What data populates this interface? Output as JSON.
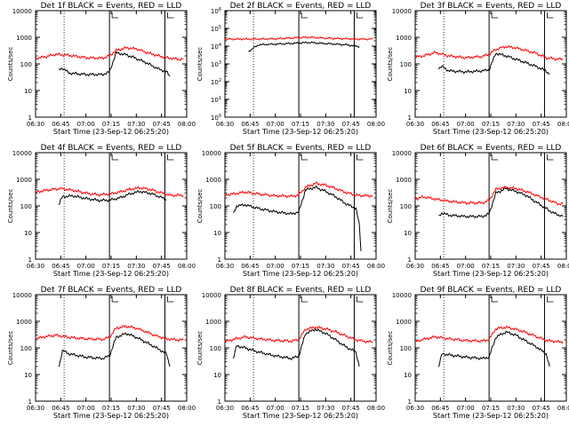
{
  "chart_data": [
    {
      "title": "Det 1f BLACK = Events, RED = LLD",
      "ylabel": "Counts/sec",
      "xlabel": "Start Time (23-Sep-12 06:25:20)",
      "type": "line",
      "scale": "log",
      "ylim": [
        1,
        10000
      ],
      "ytick_labels": [
        "1",
        "10",
        "100",
        "1000",
        "10000"
      ],
      "x_tick_labels": [
        "06:30",
        "06:45",
        "07:00",
        "07:15",
        "07:30",
        "07:45",
        "08:00"
      ],
      "x_ticks_min": [
        0,
        15,
        30,
        45,
        60,
        75,
        90
      ],
      "x_range_min": [
        0,
        90
      ],
      "dotted_lines_min": [
        17,
        77
      ],
      "solid_lines_min": [
        44,
        77
      ],
      "series": [
        {
          "color": "#ff0000",
          "x": [
            0,
            5,
            12,
            20,
            30,
            40,
            44,
            48,
            54,
            60,
            66,
            72,
            78,
            85,
            88
          ],
          "y": [
            160,
            180,
            230,
            210,
            170,
            165,
            200,
            320,
            400,
            370,
            270,
            210,
            170,
            150,
            150
          ]
        },
        {
          "color": "#000000",
          "x": [
            14,
            16,
            20,
            30,
            40,
            44,
            48,
            54,
            60,
            66,
            72,
            78,
            80
          ],
          "y": [
            60,
            70,
            45,
            40,
            40,
            50,
            260,
            220,
            160,
            110,
            70,
            50,
            35
          ]
        }
      ]
    },
    {
      "title": "Det 2f BLACK = Events, RED = LLD",
      "ylabel": "Counts/sec",
      "xlabel": "Start Time (23-Sep-12 06:25:20)",
      "type": "line",
      "scale": "log",
      "ylim": [
        1,
        1000000
      ],
      "ytick_labels": [
        "10^0",
        "10^1",
        "10^2",
        "10^3",
        "10^4",
        "10^5",
        "10^6"
      ],
      "x_tick_labels": [
        "06:30",
        "06:45",
        "07:00",
        "07:15",
        "07:30",
        "07:45",
        "08:00"
      ],
      "x_ticks_min": [
        0,
        15,
        30,
        45,
        60,
        75,
        90
      ],
      "x_range_min": [
        0,
        90
      ],
      "dotted_lines_min": [
        17,
        77
      ],
      "solid_lines_min": [
        44,
        77
      ],
      "series": [
        {
          "color": "#ff0000",
          "x": [
            0,
            15,
            30,
            44,
            50,
            60,
            72,
            80,
            88
          ],
          "y": [
            25000,
            25000,
            26000,
            30000,
            32000,
            28000,
            26000,
            25000,
            25000
          ]
        },
        {
          "color": "#000000",
          "x": [
            14,
            20,
            30,
            44,
            50,
            60,
            72,
            78,
            80
          ],
          "y": [
            5000,
            12000,
            13000,
            15000,
            16000,
            14000,
            12000,
            10000,
            9500
          ]
        }
      ]
    },
    {
      "title": "Det 3f BLACK = Events, RED = LLD",
      "ylabel": "Counts/sec",
      "xlabel": "Start Time (23-Sep-12 06:25:20)",
      "type": "line",
      "scale": "log",
      "ylim": [
        1,
        10000
      ],
      "ytick_labels": [
        "1",
        "10",
        "100",
        "1000",
        "10000"
      ],
      "x_tick_labels": [
        "06:30",
        "06:45",
        "07:00",
        "07:15",
        "07:30",
        "07:45",
        "08:00"
      ],
      "x_ticks_min": [
        0,
        15,
        30,
        45,
        60,
        75,
        90
      ],
      "x_range_min": [
        0,
        90
      ],
      "dotted_lines_min": [
        17,
        77
      ],
      "solid_lines_min": [
        44,
        77
      ],
      "series": [
        {
          "color": "#ff0000",
          "x": [
            0,
            5,
            12,
            20,
            30,
            40,
            44,
            48,
            54,
            60,
            66,
            72,
            78,
            85,
            88
          ],
          "y": [
            180,
            200,
            270,
            200,
            170,
            190,
            230,
            350,
            450,
            400,
            320,
            250,
            170,
            150,
            150
          ]
        },
        {
          "color": "#000000",
          "x": [
            14,
            16,
            20,
            30,
            40,
            44,
            48,
            54,
            60,
            66,
            72,
            78,
            80
          ],
          "y": [
            70,
            80,
            55,
            50,
            55,
            60,
            250,
            200,
            150,
            110,
            80,
            55,
            40
          ]
        }
      ]
    },
    {
      "title": "Det 4f BLACK = Events, RED = LLD",
      "ylabel": "Counts/sec",
      "xlabel": "Start Time (23-Sep-12 06:25:20)",
      "type": "line",
      "scale": "log",
      "ylim": [
        1,
        10000
      ],
      "ytick_labels": [
        "1",
        "10",
        "100",
        "1000",
        "10000"
      ],
      "x_tick_labels": [
        "06:30",
        "06:45",
        "07:00",
        "07:15",
        "07:30",
        "07:45",
        "08:00"
      ],
      "x_ticks_min": [
        0,
        15,
        30,
        45,
        60,
        75,
        90
      ],
      "x_range_min": [
        0,
        90
      ],
      "dotted_lines_min": [
        17,
        77
      ],
      "solid_lines_min": [
        44,
        77
      ],
      "series": [
        {
          "color": "#ff0000",
          "x": [
            0,
            8,
            15,
            22,
            30,
            38,
            44,
            50,
            56,
            62,
            68,
            74,
            80,
            88
          ],
          "y": [
            330,
            400,
            450,
            390,
            300,
            260,
            280,
            330,
            420,
            480,
            420,
            320,
            250,
            250
          ]
        },
        {
          "color": "#000000",
          "x": [
            14,
            16,
            22,
            30,
            38,
            44,
            50,
            56,
            62,
            68,
            74,
            78
          ],
          "y": [
            120,
            220,
            240,
            190,
            160,
            165,
            200,
            280,
            350,
            300,
            220,
            170
          ]
        }
      ]
    },
    {
      "title": "Det 5f BLACK = Events, RED = LLD",
      "ylabel": "Counts/sec",
      "xlabel": "Start Time (23-Sep-12 06:25:20)",
      "type": "line",
      "scale": "log",
      "ylim": [
        1,
        10000
      ],
      "ytick_labels": [
        "1",
        "10",
        "100",
        "1000",
        "10000"
      ],
      "x_tick_labels": [
        "06:30",
        "06:45",
        "07:00",
        "07:15",
        "07:30",
        "07:45",
        "08:00"
      ],
      "x_ticks_min": [
        0,
        15,
        30,
        45,
        60,
        75,
        90
      ],
      "x_range_min": [
        0,
        90
      ],
      "dotted_lines_min": [
        17,
        77
      ],
      "solid_lines_min": [
        44,
        77
      ],
      "series": [
        {
          "color": "#ff0000",
          "x": [
            0,
            5,
            12,
            20,
            30,
            40,
            44,
            48,
            54,
            60,
            66,
            72,
            78,
            85,
            88
          ],
          "y": [
            260,
            280,
            330,
            280,
            240,
            230,
            260,
            500,
            700,
            600,
            450,
            320,
            250,
            240,
            240
          ]
        },
        {
          "color": "#000000",
          "x": [
            5,
            7,
            12,
            20,
            30,
            40,
            44,
            48,
            54,
            60,
            66,
            72,
            78,
            80,
            81
          ],
          "y": [
            50,
            100,
            110,
            80,
            60,
            50,
            60,
            400,
            500,
            350,
            220,
            120,
            80,
            20,
            2
          ]
        }
      ]
    },
    {
      "title": "Det 6f BLACK = Events, RED = LLD",
      "ylabel": "Counts/sec",
      "xlabel": "Start Time (23-Sep-12 06:25:20)",
      "type": "line",
      "scale": "log",
      "ylim": [
        1,
        10000
      ],
      "ytick_labels": [
        "1",
        "10",
        "100",
        "1000",
        "10000"
      ],
      "x_tick_labels": [
        "06:30",
        "06:45",
        "07:00",
        "07:15",
        "07:30",
        "07:45",
        "08:00"
      ],
      "x_ticks_min": [
        0,
        15,
        30,
        45,
        60,
        75,
        90
      ],
      "x_range_min": [
        0,
        90
      ],
      "dotted_lines_min": [
        17,
        77
      ],
      "solid_lines_min": [
        44,
        77
      ],
      "series": [
        {
          "color": "#ff0000",
          "x": [
            0,
            5,
            12,
            20,
            30,
            40,
            44,
            48,
            54,
            60,
            66,
            72,
            78,
            85,
            88
          ],
          "y": [
            180,
            220,
            180,
            150,
            130,
            130,
            160,
            420,
            500,
            450,
            350,
            250,
            180,
            120,
            120
          ]
        },
        {
          "color": "#000000",
          "x": [
            14,
            16,
            20,
            30,
            40,
            44,
            48,
            54,
            60,
            66,
            72,
            78,
            82,
            88
          ],
          "y": [
            40,
            55,
            45,
            40,
            40,
            50,
            300,
            450,
            350,
            250,
            140,
            80,
            55,
            40
          ]
        }
      ]
    },
    {
      "title": "Det 7f BLACK = Events, RED = LLD",
      "ylabel": "Counts/sec",
      "xlabel": "Start Time (23-Sep-12 06:25:20)",
      "type": "line",
      "scale": "log",
      "ylim": [
        1,
        10000
      ],
      "ytick_labels": [
        "1",
        "10",
        "100",
        "1000",
        "10000"
      ],
      "x_tick_labels": [
        "06:30",
        "06:45",
        "07:00",
        "07:15",
        "07:30",
        "07:45",
        "08:00"
      ],
      "x_ticks_min": [
        0,
        15,
        30,
        45,
        60,
        75,
        90
      ],
      "x_range_min": [
        0,
        90
      ],
      "dotted_lines_min": [
        17,
        77
      ],
      "solid_lines_min": [
        44,
        77
      ],
      "series": [
        {
          "color": "#ff0000",
          "x": [
            0,
            5,
            12,
            20,
            30,
            40,
            44,
            48,
            54,
            60,
            66,
            72,
            78,
            85,
            88
          ],
          "y": [
            220,
            260,
            300,
            250,
            220,
            210,
            250,
            550,
            650,
            550,
            400,
            280,
            220,
            200,
            200
          ]
        },
        {
          "color": "#000000",
          "x": [
            14,
            16,
            20,
            30,
            40,
            44,
            48,
            54,
            60,
            66,
            72,
            78,
            80
          ],
          "y": [
            20,
            80,
            60,
            45,
            40,
            50,
            250,
            350,
            250,
            160,
            100,
            60,
            20
          ]
        }
      ]
    },
    {
      "title": "Det 8f BLACK = Events, RED = LLD",
      "ylabel": "Counts/sec",
      "xlabel": "Start Time (23-Sep-12 06:25:20)",
      "type": "line",
      "scale": "log",
      "ylim": [
        1,
        10000
      ],
      "ytick_labels": [
        "1",
        "10",
        "100",
        "1000",
        "10000"
      ],
      "x_tick_labels": [
        "06:30",
        "06:45",
        "07:00",
        "07:15",
        "07:30",
        "07:45",
        "08:00"
      ],
      "x_ticks_min": [
        0,
        15,
        30,
        45,
        60,
        75,
        90
      ],
      "x_range_min": [
        0,
        90
      ],
      "dotted_lines_min": [
        17,
        77
      ],
      "solid_lines_min": [
        44,
        77
      ],
      "series": [
        {
          "color": "#ff0000",
          "x": [
            0,
            5,
            12,
            20,
            30,
            40,
            44,
            48,
            54,
            60,
            66,
            72,
            78,
            85,
            88
          ],
          "y": [
            170,
            210,
            260,
            220,
            190,
            180,
            210,
            500,
            600,
            520,
            400,
            280,
            200,
            170,
            170
          ]
        },
        {
          "color": "#000000",
          "x": [
            5,
            7,
            12,
            20,
            30,
            40,
            44,
            48,
            54,
            60,
            66,
            72,
            78,
            80
          ],
          "y": [
            40,
            120,
            100,
            70,
            50,
            40,
            50,
            350,
            500,
            350,
            200,
            110,
            70,
            20
          ]
        }
      ]
    },
    {
      "title": "Det 9f BLACK = Events, RED = LLD",
      "ylabel": "Counts/sec",
      "xlabel": "Start Time (23-Sep-12 06:25:20)",
      "type": "line",
      "scale": "log",
      "ylim": [
        1,
        10000
      ],
      "ytick_labels": [
        "1",
        "10",
        "100",
        "1000",
        "10000"
      ],
      "x_tick_labels": [
        "06:30",
        "06:45",
        "07:00",
        "07:15",
        "07:30",
        "07:45",
        "08:00"
      ],
      "x_ticks_min": [
        0,
        15,
        30,
        45,
        60,
        75,
        90
      ],
      "x_range_min": [
        0,
        90
      ],
      "dotted_lines_min": [
        17,
        77
      ],
      "solid_lines_min": [
        44,
        77
      ],
      "series": [
        {
          "color": "#ff0000",
          "x": [
            0,
            5,
            12,
            20,
            30,
            40,
            44,
            48,
            54,
            60,
            66,
            72,
            78,
            85,
            88
          ],
          "y": [
            170,
            210,
            260,
            220,
            190,
            180,
            210,
            520,
            600,
            500,
            380,
            270,
            190,
            170,
            170
          ]
        },
        {
          "color": "#000000",
          "x": [
            14,
            16,
            20,
            30,
            40,
            44,
            48,
            54,
            60,
            66,
            72,
            78,
            80
          ],
          "y": [
            20,
            60,
            55,
            45,
            40,
            45,
            250,
            400,
            300,
            180,
            110,
            60,
            20
          ]
        }
      ]
    }
  ]
}
